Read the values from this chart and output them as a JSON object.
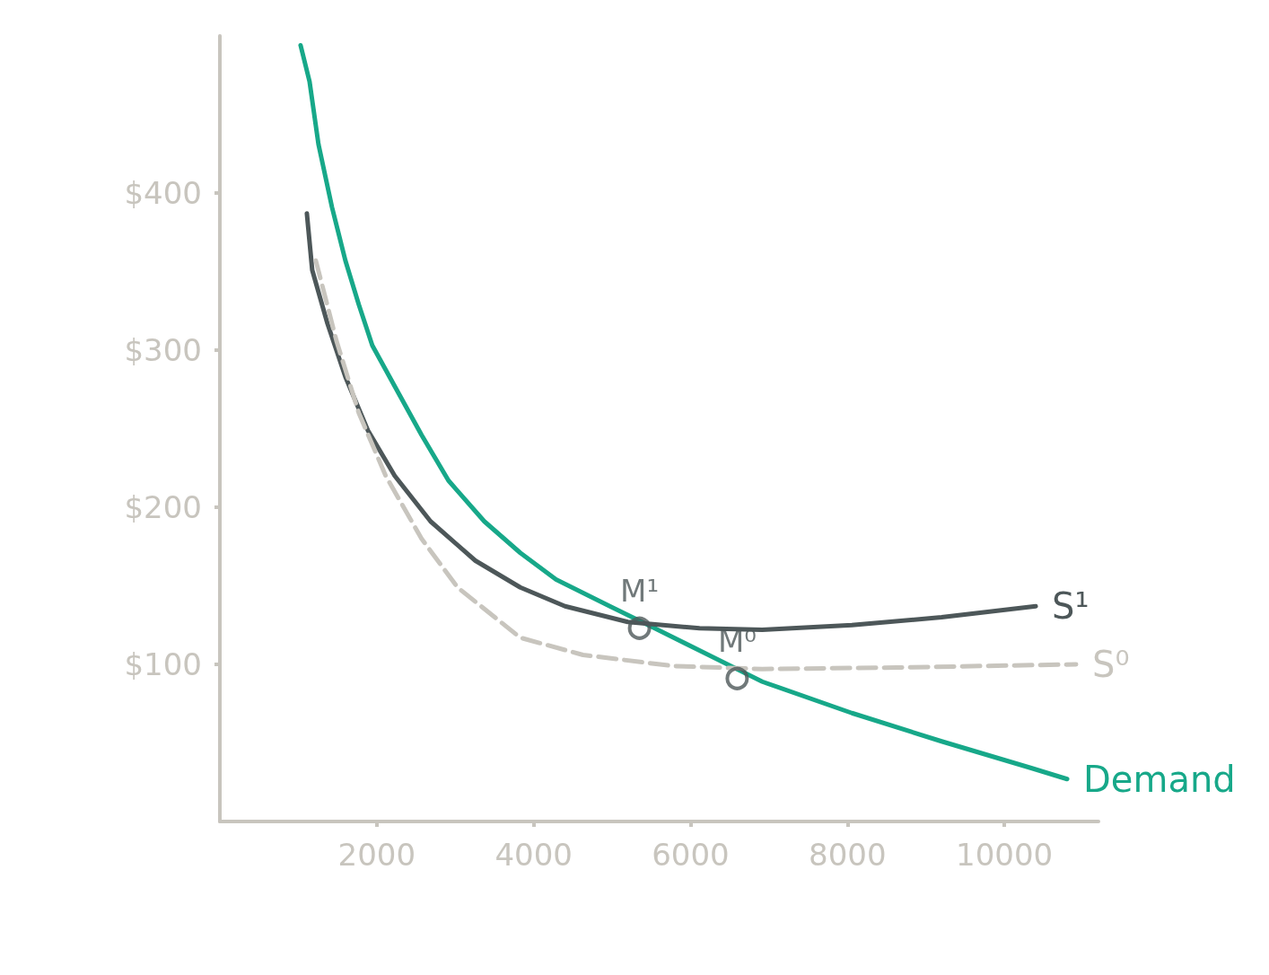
{
  "chart_data": {
    "type": "line",
    "xlim": [
      0,
      11200
    ],
    "ylim": [
      0,
      500
    ],
    "xticks": [
      2000,
      4000,
      6000,
      8000,
      10000
    ],
    "yticks": [
      {
        "value": 100,
        "label": "$100"
      },
      {
        "value": 200,
        "label": "$200"
      },
      {
        "value": 300,
        "label": "$300"
      },
      {
        "value": 400,
        "label": "$400"
      }
    ],
    "grid": false,
    "legend": false,
    "marker": "none",
    "series": [
      {
        "name": "Demand",
        "color": "#17a889",
        "line_style": "solid",
        "x": [
          1029,
          1143,
          1257,
          1429,
          1600,
          1771,
          1943,
          2229,
          2571,
          2914,
          3371,
          3829,
          4286,
          4971,
          5543,
          6229,
          6914,
          8057,
          9200,
          10343,
          10800
        ],
        "values": [
          494,
          471,
          431,
          391,
          357,
          329,
          303,
          277,
          246,
          217,
          191,
          171,
          154,
          137,
          123,
          106,
          89,
          69,
          51,
          34,
          27
        ]
      },
      {
        "name": "S¹",
        "color": "#4d5759",
        "line_style": "solid",
        "x": [
          1109,
          1177,
          1371,
          1600,
          1886,
          2229,
          2686,
          3257,
          3829,
          4400,
          5200,
          6114,
          6914,
          8057,
          9200,
          10400
        ],
        "values": [
          387,
          351,
          317,
          283,
          249,
          220,
          191,
          166,
          149,
          137,
          127,
          123,
          122,
          125,
          130,
          137
        ]
      },
      {
        "name": "S⁰",
        "color": "#c8c5be",
        "line_style": "dashed",
        "x": [
          1223,
          1486,
          1771,
          2114,
          2571,
          3029,
          3829,
          4629,
          5771,
          6914,
          8629,
          10914
        ],
        "values": [
          357,
          306,
          260,
          220,
          180,
          149,
          117,
          106,
          99,
          97,
          98,
          100
        ]
      }
    ],
    "annotations": [
      {
        "text": "M¹",
        "x": 5349,
        "y": 123
      },
      {
        "text": "M⁰",
        "x": 6594,
        "y": 91
      }
    ]
  }
}
